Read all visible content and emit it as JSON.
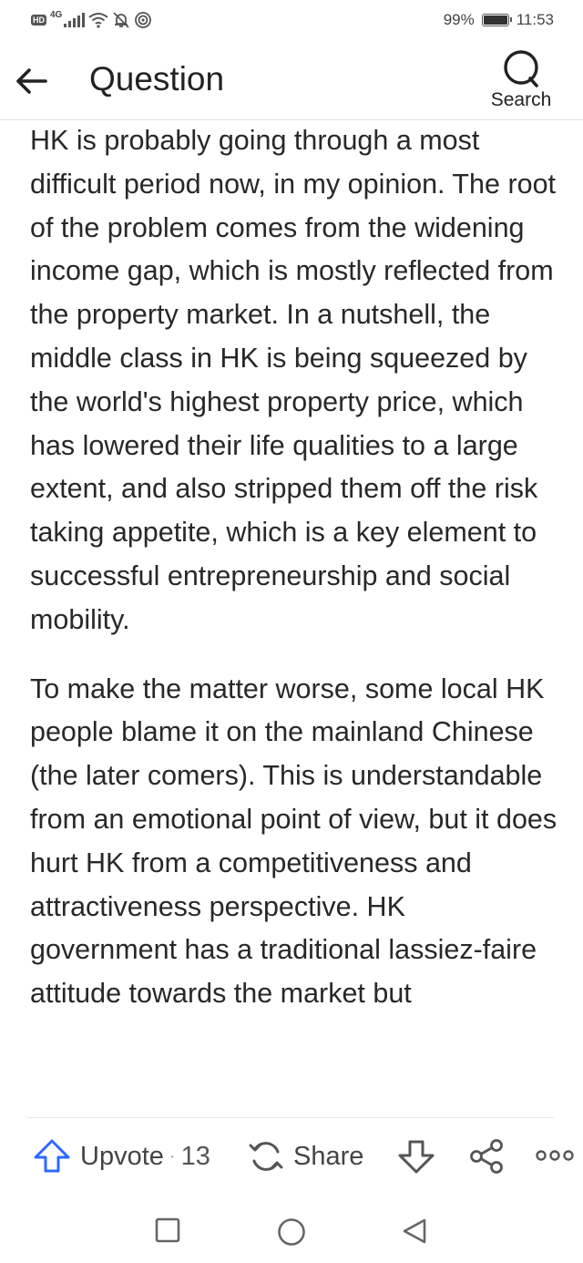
{
  "status_bar": {
    "hd": "HD",
    "network": "4G",
    "battery": "99%",
    "time": "11:53",
    "icons": [
      "hd-icon",
      "signal-icon",
      "wifi-icon",
      "mute-icon",
      "hotspot-icon",
      "battery-icon"
    ]
  },
  "header": {
    "title": "Question",
    "search_label": "Search",
    "icons": [
      "back-arrow-icon",
      "search-icon"
    ]
  },
  "content": {
    "paragraphs": [
      "HK is probably going through a most difficult period now, in my opinion. The root of the problem comes from the widening income gap, which is mostly reflected from the property market. In a nutshell, the middle class in HK is being squeezed by the world's highest property price, which has lowered their life qualities to a large extent, and also stripped them off the risk taking appetite, which is a key element to successful entrepreneurship and social mobility.",
      "To make the matter worse, some local HK people blame it on the mainland Chinese (the later comers). This is understandable from an emotional point of view, but it does hurt HK from a competitiveness and attractiveness perspective. HK government has a traditional lassiez-faire attitude towards the market but"
    ]
  },
  "action_bar": {
    "upvote_label": "Upvote",
    "separator": "·",
    "upvote_count": "13",
    "share_label": "Share",
    "icons": [
      "upvote-arrow-icon",
      "share-refresh-icon",
      "downvote-arrow-icon",
      "share-nodes-icon",
      "more-dots-icon"
    ],
    "accent_color": "#2e69ff"
  },
  "nav_bar": {
    "icons": [
      "recent-apps-icon",
      "home-icon",
      "back-triangle-icon"
    ]
  }
}
